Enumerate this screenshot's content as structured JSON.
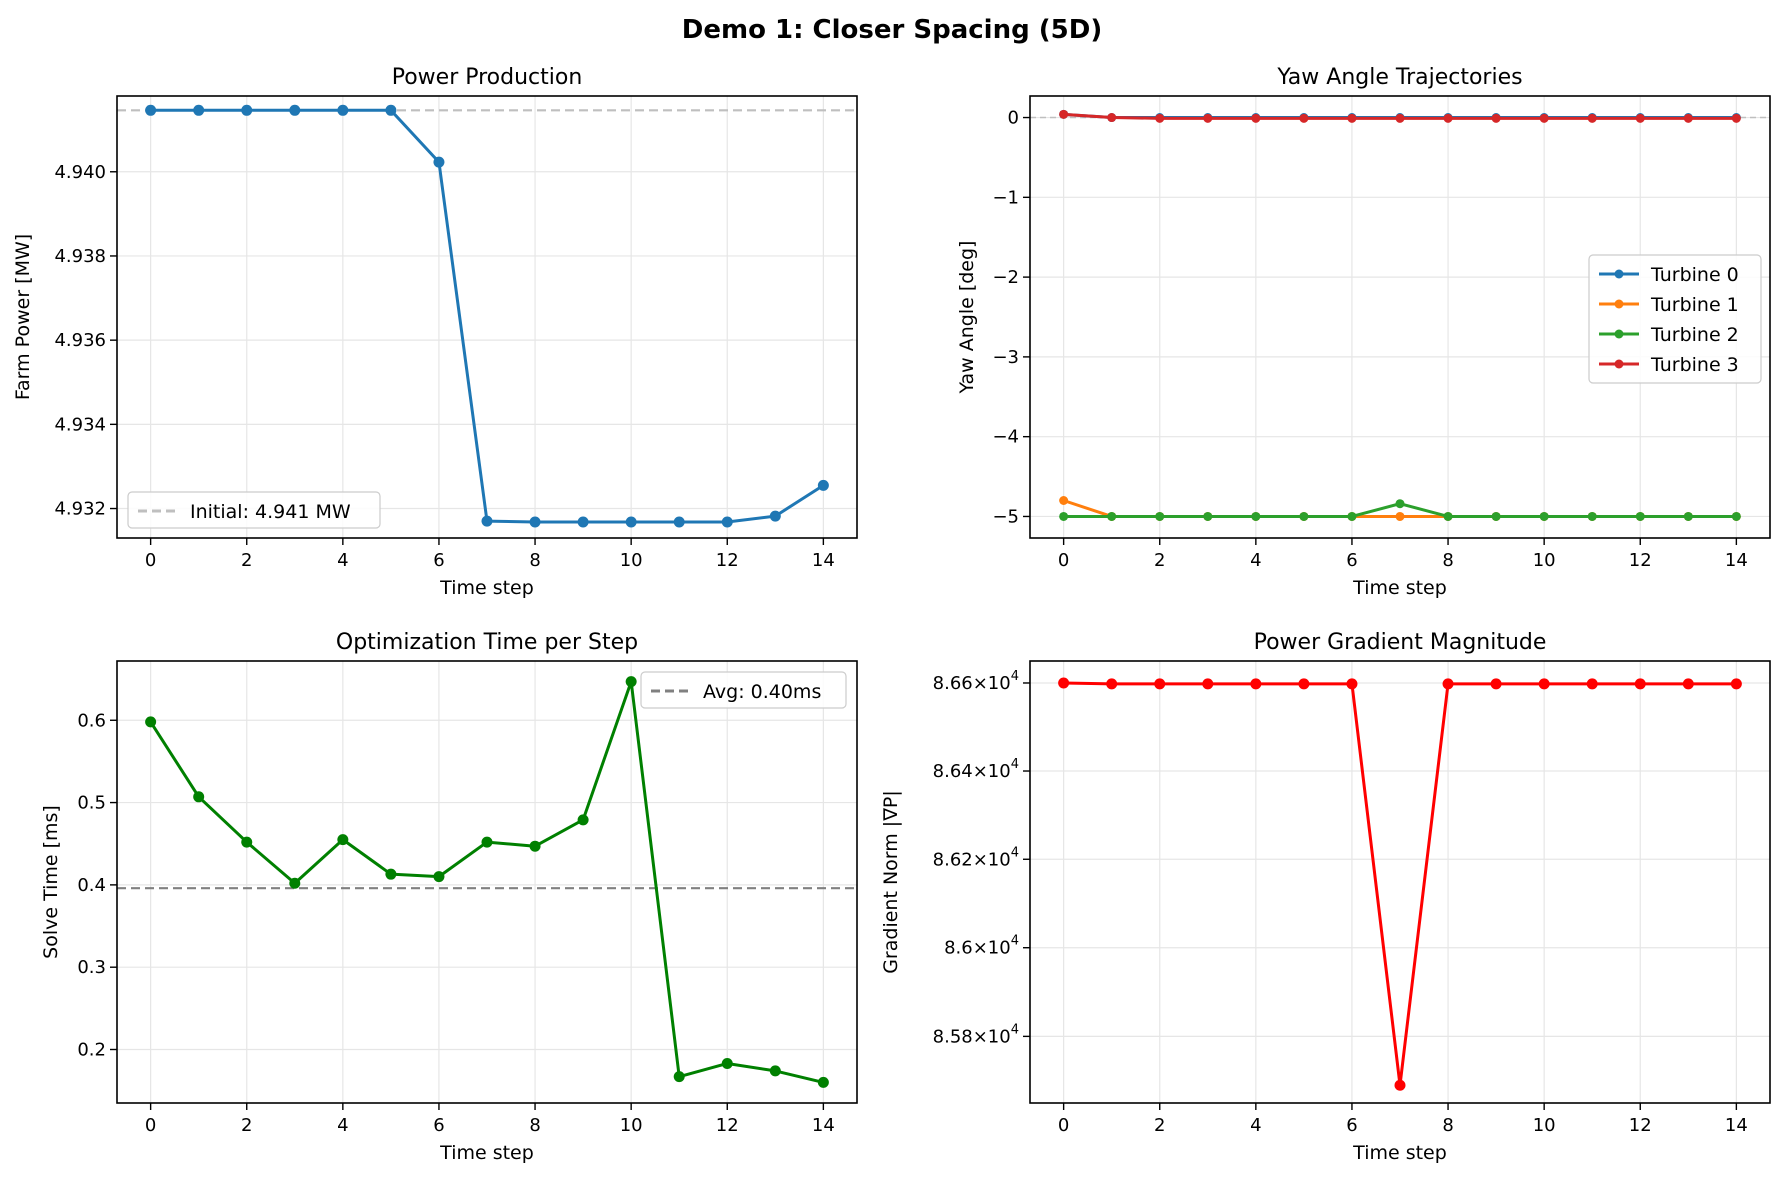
{
  "figure": {
    "title": "Demo 1: Closer Spacing (5D)"
  },
  "colors": {
    "blue": "#1f77b4",
    "orange": "#ff7f0e",
    "green": "#2ca02c",
    "red": "#d62728",
    "solid_green": "#008000",
    "solid_red": "#ff0000",
    "grid": "#e6e6e6",
    "ref_light": "#bfbfbf",
    "ref_dark": "#808080"
  },
  "chart_data": [
    {
      "id": "power",
      "type": "line",
      "title": "Power Production",
      "xlabel": "Time step",
      "ylabel": "Farm Power [MW]",
      "xlim": [
        -0.7,
        14.7
      ],
      "ylim": [
        4.9313,
        4.9418
      ],
      "xticks": [
        0,
        2,
        4,
        6,
        8,
        10,
        12,
        14
      ],
      "yticks": [
        4.932,
        4.934,
        4.936,
        4.938,
        4.94
      ],
      "ytick_labels": [
        "4.932",
        "4.934",
        "4.936",
        "4.938",
        "4.940"
      ],
      "grid": true,
      "x": [
        0,
        1,
        2,
        3,
        4,
        5,
        6,
        7,
        8,
        9,
        10,
        11,
        12,
        13,
        14
      ],
      "series": [
        {
          "values": [
            4.94146,
            4.94146,
            4.94146,
            4.94146,
            4.94146,
            4.94146,
            4.94023,
            4.9317,
            4.93168,
            4.93168,
            4.93168,
            4.93168,
            4.93168,
            4.93182,
            4.93255
          ],
          "color": "#1f77b4",
          "width": 3,
          "marker": 5.5
        }
      ],
      "hlines": [
        {
          "y": 4.94146,
          "color": "#bfbfbf",
          "dash": "9,5",
          "width": 2.2,
          "label": "Initial: 4.941 MW"
        }
      ],
      "legend": {
        "placement": "lower left",
        "entries": [
          {
            "label": "Initial: 4.941 MW",
            "color": "#bfbfbf",
            "dash": "9,5",
            "marker": false
          }
        ]
      }
    },
    {
      "id": "yaw",
      "type": "line",
      "title": "Yaw Angle Trajectories",
      "xlabel": "Time step",
      "ylabel": "Yaw Angle [deg]",
      "xlim": [
        -0.7,
        14.7
      ],
      "ylim": [
        -5.27,
        0.27
      ],
      "xticks": [
        0,
        2,
        4,
        6,
        8,
        10,
        12,
        14
      ],
      "yticks": [
        0,
        -1,
        -2,
        -3,
        -4,
        -5
      ],
      "ytick_labels": [
        "0",
        "−1",
        "−2",
        "−3",
        "−4",
        "−5"
      ],
      "grid": true,
      "x": [
        0,
        1,
        2,
        3,
        4,
        5,
        6,
        7,
        8,
        9,
        10,
        11,
        12,
        13,
        14
      ],
      "series": [
        {
          "name": "Turbine 0",
          "values": [
            0.04,
            0.0,
            0,
            0,
            0,
            0,
            0,
            0,
            0,
            0,
            0,
            0,
            0,
            0,
            0
          ],
          "color": "#1f77b4",
          "width": 3,
          "marker": 4.5
        },
        {
          "name": "Turbine 1",
          "values": [
            -4.8,
            -5,
            -5,
            -5,
            -5,
            -5,
            -5,
            -5,
            -5,
            -5,
            -5,
            -5,
            -5,
            -5,
            -5
          ],
          "color": "#ff7f0e",
          "width": 3,
          "marker": 4.5
        },
        {
          "name": "Turbine 2",
          "values": [
            -5,
            -5,
            -5,
            -5,
            -5,
            -5,
            -5,
            -4.84,
            -5,
            -5,
            -5,
            -5,
            -5,
            -5,
            -5
          ],
          "color": "#2ca02c",
          "width": 3,
          "marker": 4.5
        },
        {
          "name": "Turbine 3",
          "values": [
            0.04,
            0.0,
            -0.01,
            -0.01,
            -0.01,
            -0.01,
            -0.01,
            -0.01,
            -0.01,
            -0.01,
            -0.01,
            -0.01,
            -0.01,
            -0.01,
            -0.01
          ],
          "color": "#d62728",
          "width": 3,
          "marker": 4.5
        }
      ],
      "hlines": [
        {
          "y": 0,
          "color": "#bfbfbf",
          "dash": "6,4",
          "width": 1.5
        }
      ],
      "legend": {
        "placement": "center right",
        "entries": [
          {
            "label": "Turbine 0",
            "color": "#1f77b4",
            "marker": true
          },
          {
            "label": "Turbine 1",
            "color": "#ff7f0e",
            "marker": true
          },
          {
            "label": "Turbine 2",
            "color": "#2ca02c",
            "marker": true
          },
          {
            "label": "Turbine 3",
            "color": "#d62728",
            "marker": true
          }
        ]
      }
    },
    {
      "id": "time",
      "type": "line",
      "title": "Optimization Time per Step",
      "xlabel": "Time step",
      "ylabel": "Solve Time [ms]",
      "xlim": [
        -0.7,
        14.7
      ],
      "ylim": [
        0.135,
        0.672
      ],
      "xticks": [
        0,
        2,
        4,
        6,
        8,
        10,
        12,
        14
      ],
      "yticks": [
        0.2,
        0.3,
        0.4,
        0.5,
        0.6
      ],
      "ytick_labels": [
        "0.2",
        "0.3",
        "0.4",
        "0.5",
        "0.6"
      ],
      "grid": true,
      "x": [
        0,
        1,
        2,
        3,
        4,
        5,
        6,
        7,
        8,
        9,
        10,
        11,
        12,
        13,
        14
      ],
      "series": [
        {
          "values": [
            0.598,
            0.507,
            0.452,
            0.402,
            0.455,
            0.413,
            0.41,
            0.452,
            0.447,
            0.479,
            0.647,
            0.167,
            0.183,
            0.174,
            0.16
          ],
          "color": "#008000",
          "width": 3,
          "marker": 5.5
        }
      ],
      "hlines": [
        {
          "y": 0.396,
          "color": "#808080",
          "dash": "9,5",
          "width": 2.2,
          "label": "Avg: 0.40ms"
        }
      ],
      "legend": {
        "placement": "upper right",
        "entries": [
          {
            "label": "Avg: 0.40ms",
            "color": "#808080",
            "dash": "9,5",
            "marker": false
          }
        ]
      }
    },
    {
      "id": "grad",
      "type": "line",
      "title": "Power Gradient Magnitude",
      "xlabel": "Time step",
      "ylabel": "Gradient Norm |∇P|",
      "yscale": "log",
      "xlim": [
        -0.7,
        14.7
      ],
      "ylim": [
        85650,
        86650
      ],
      "xticks": [
        0,
        2,
        4,
        6,
        8,
        10,
        12,
        14
      ],
      "yticks": [
        85800,
        86000,
        86200,
        86400,
        86600
      ],
      "ytick_labels": [
        "8.58",
        "8.6",
        "8.62",
        "8.64",
        "8.66"
      ],
      "ytick_suffix": "×10",
      "ytick_exp": "4",
      "grid": true,
      "x": [
        0,
        1,
        2,
        3,
        4,
        5,
        6,
        7,
        8,
        9,
        10,
        11,
        12,
        13,
        14
      ],
      "series": [
        {
          "values": [
            86600,
            86598,
            86598,
            86598,
            86598,
            86598,
            86598,
            85690,
            86598,
            86598,
            86598,
            86598,
            86598,
            86598,
            86598
          ],
          "color": "#ff0000",
          "width": 3,
          "marker": 5.5
        }
      ],
      "hlines": []
    }
  ]
}
